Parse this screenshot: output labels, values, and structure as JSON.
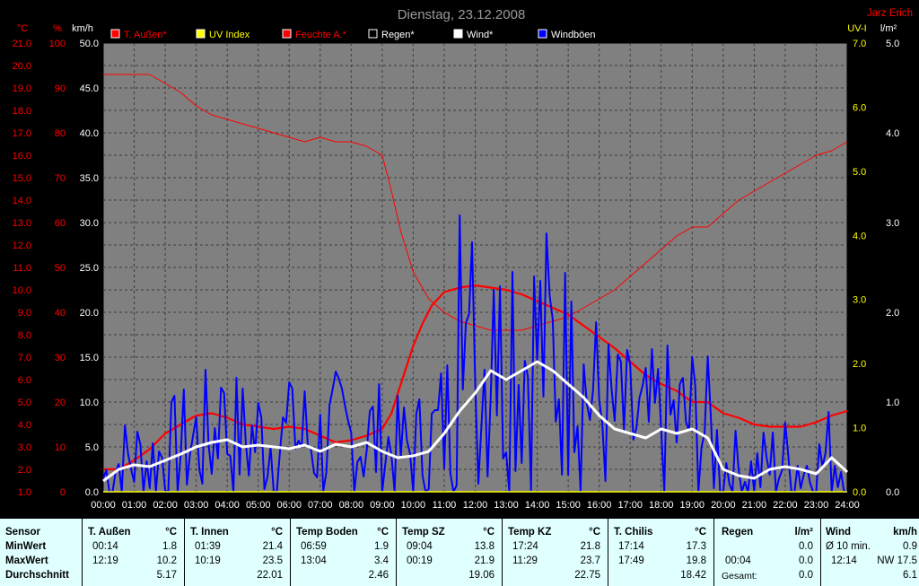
{
  "header": {
    "title": "Dienstag, 23.12.2008",
    "author": "Jarz Erich"
  },
  "colors": {
    "background": "#000000",
    "plot_bg": "#808080",
    "temp": "#ff0000",
    "uv": "#ffff00",
    "humidity": "#ff0000",
    "rain": "#000000",
    "wind": "#ffffff",
    "gust": "#0000ff",
    "stats_bg": "#e0ffff"
  },
  "chart_data": {
    "type": "line",
    "x_unit": "time of day",
    "x_ticks": [
      "00:00",
      "01:00",
      "02:00",
      "03:00",
      "04:00",
      "05:00",
      "06:00",
      "07:00",
      "08:00",
      "09:00",
      "10:00",
      "11:00",
      "12:00",
      "13:00",
      "14:00",
      "15:00",
      "16:00",
      "17:00",
      "18:00",
      "19:00",
      "20:00",
      "21:00",
      "22:00",
      "23:00",
      "24:00"
    ],
    "axes": {
      "temp": {
        "unit_label": "°C",
        "ticks": [
          "1.0",
          "2.0",
          "3.0",
          "4.0",
          "5.0",
          "6.0",
          "7.0",
          "8.0",
          "9.0",
          "10.0",
          "11.0",
          "12.0",
          "13.0",
          "14.0",
          "15.0",
          "16.0",
          "17.0",
          "18.0",
          "19.0",
          "20.0",
          "21.0"
        ],
        "min": 1,
        "max": 21
      },
      "humidity": {
        "unit_label": "%",
        "ticks": [
          "0",
          "10",
          "20",
          "30",
          "40",
          "50",
          "60",
          "70",
          "80",
          "90",
          "100"
        ],
        "min": 0,
        "max": 100
      },
      "wind": {
        "unit_label": "km/h",
        "ticks": [
          "0.0",
          "5.0",
          "10.0",
          "15.0",
          "20.0",
          "25.0",
          "30.0",
          "35.0",
          "40.0",
          "45.0",
          "50.0"
        ],
        "min": 0,
        "max": 50
      },
      "uv": {
        "unit_label": "UV-I",
        "ticks": [
          "0.0",
          "1.0",
          "2.0",
          "3.0",
          "4.0",
          "5.0",
          "6.0",
          "7.0"
        ],
        "min": 0,
        "max": 7
      },
      "rain": {
        "unit_label": "l/m²",
        "ticks": [
          "0.0",
          "1.0",
          "2.0",
          "3.0",
          "4.0",
          "5.0"
        ],
        "min": 0,
        "max": 5
      }
    },
    "legend": [
      {
        "name": "T. Außen*",
        "color": "#ff0000",
        "text_color": "#ff0000"
      },
      {
        "name": "UV Index",
        "color": "#ffff00",
        "text_color": "#ffff00"
      },
      {
        "name": "Feuchte A.*",
        "color": "#ff0000",
        "text_color": "#ff0000"
      },
      {
        "name": "Regen*",
        "color": "#000000",
        "text_color": "#ffffff"
      },
      {
        "name": "Wind*",
        "color": "#ffffff",
        "text_color": "#ffffff"
      },
      {
        "name": "Windböen",
        "color": "#0000ff",
        "text_color": "#ffffff"
      }
    ],
    "grid": true,
    "series": [
      {
        "name": "T. Außen*",
        "axis": "temp",
        "color": "#ff0000",
        "width": 2.2,
        "x": [
          0,
          0.5,
          1,
          1.5,
          2,
          2.5,
          3,
          3.5,
          4,
          4.5,
          5,
          5.5,
          6,
          6.5,
          7,
          7.5,
          8,
          8.5,
          9,
          9.3,
          9.6,
          10,
          10.3,
          10.6,
          11,
          11.5,
          12,
          12.5,
          13,
          13.5,
          14,
          14.5,
          15,
          15.5,
          16,
          16.5,
          17,
          17.5,
          18,
          18.5,
          19,
          19.5,
          20,
          20.5,
          21,
          21.5,
          22,
          22.5,
          23,
          23.5,
          24
        ],
        "y": [
          2.0,
          2.0,
          2.4,
          2.9,
          3.6,
          4.0,
          4.4,
          4.5,
          4.3,
          4.0,
          3.9,
          3.8,
          3.9,
          3.8,
          3.5,
          3.2,
          3.3,
          3.5,
          3.8,
          4.5,
          5.8,
          7.5,
          8.5,
          9.3,
          9.9,
          10.1,
          10.2,
          10.1,
          10.0,
          9.8,
          9.5,
          9.2,
          8.9,
          8.4,
          7.9,
          7.4,
          6.8,
          6.2,
          5.8,
          5.5,
          5.0,
          5.0,
          4.5,
          4.3,
          4.0,
          3.9,
          3.9,
          3.9,
          4.1,
          4.4,
          4.6
        ]
      },
      {
        "name": "Feuchte A.*",
        "axis": "humidity",
        "color": "#ff0000",
        "width": 1,
        "x": [
          0,
          0.5,
          1,
          1.5,
          2,
          2.5,
          3,
          3.5,
          4,
          4.5,
          5,
          5.5,
          6,
          6.5,
          7,
          7.5,
          8,
          8.5,
          9,
          9.3,
          9.6,
          10,
          10.5,
          11,
          11.5,
          12,
          12.5,
          13,
          13.5,
          14,
          14.5,
          15,
          15.5,
          16,
          16.5,
          17,
          17.5,
          18,
          18.5,
          19,
          19.5,
          20,
          20.5,
          21,
          21.5,
          22,
          22.5,
          23,
          23.5,
          24
        ],
        "y": [
          93,
          93,
          93,
          93,
          91,
          89,
          86,
          84,
          83,
          82,
          81,
          80,
          79,
          78,
          79,
          78,
          78,
          77,
          75,
          67,
          58,
          49,
          43,
          40,
          38,
          37,
          36,
          36,
          36,
          37,
          38,
          39,
          41,
          43,
          45,
          48,
          51,
          54,
          57,
          59,
          59,
          62,
          65,
          67,
          69,
          71,
          73,
          75,
          76,
          78
        ]
      },
      {
        "name": "Windböen",
        "axis": "wind",
        "color": "#0000ff",
        "width": 2,
        "generated": "gust"
      },
      {
        "name": "Wind*",
        "axis": "wind",
        "color": "#ffffff",
        "width": 3,
        "x": [
          0,
          0.5,
          1,
          1.5,
          2,
          2.5,
          3,
          3.5,
          4,
          4.5,
          5,
          5.5,
          6,
          6.5,
          7,
          7.5,
          8,
          8.5,
          9,
          9.5,
          10,
          10.5,
          11,
          11.5,
          12,
          12.5,
          13,
          13.5,
          14,
          14.5,
          15,
          15.5,
          16,
          16.5,
          17,
          17.5,
          18,
          18.5,
          19,
          19.5,
          20,
          20.5,
          21,
          21.5,
          22,
          22.5,
          23,
          23.5,
          24
        ],
        "y": [
          1.2,
          2.5,
          3.0,
          2.8,
          3.5,
          4.2,
          5.0,
          5.5,
          5.8,
          5.0,
          5.2,
          5.0,
          4.8,
          5.2,
          4.5,
          5.3,
          5.0,
          5.5,
          4.5,
          3.8,
          4.0,
          4.5,
          6.5,
          9.0,
          11.0,
          13.5,
          12.5,
          13.5,
          14.5,
          13.5,
          12.0,
          10.5,
          8.5,
          7.0,
          6.5,
          6.0,
          7.0,
          6.5,
          7.0,
          6.0,
          2.5,
          1.8,
          1.5,
          2.5,
          2.8,
          2.5,
          2.0,
          3.8,
          2.2
        ]
      },
      {
        "name": "UV Index",
        "axis": "uv",
        "color": "#ffff00",
        "width": 1.5,
        "x": [
          0,
          24
        ],
        "y": [
          0,
          0
        ]
      }
    ]
  },
  "stats": {
    "row_labels": [
      "Sensor",
      "MinWert",
      "MaxWert",
      "Durchschnitt"
    ],
    "columns": [
      {
        "title": "T. Außen",
        "unit": "°C",
        "min_time": "00:14",
        "min_val": "1.8",
        "max_time": "12:19",
        "max_val": "10.2",
        "avg": "5.17"
      },
      {
        "title": "T. Innen",
        "unit": "°C",
        "min_time": "01:39",
        "min_val": "21.4",
        "max_time": "10:19",
        "max_val": "23.5",
        "avg": "22.01"
      },
      {
        "title": "Temp Boden",
        "unit": "°C",
        "min_time": "06:59",
        "min_val": "1.9",
        "max_time": "13:04",
        "max_val": "3.4",
        "avg": "2.46"
      },
      {
        "title": "Temp SZ",
        "unit": "°C",
        "min_time": "09:04",
        "min_val": "13.8",
        "max_time": "00:19",
        "max_val": "21.9",
        "avg": "19.06"
      },
      {
        "title": "Temp KZ",
        "unit": "°C",
        "min_time": "17:24",
        "min_val": "21.8",
        "max_time": "11:29",
        "max_val": "23.7",
        "avg": "22.75"
      },
      {
        "title": "T. Chilis",
        "unit": "°C",
        "min_time": "17:14",
        "min_val": "17.3",
        "max_time": "17:49",
        "max_val": "19.8",
        "avg": "18.42"
      }
    ],
    "regen": {
      "title": "Regen",
      "unit": "l/m²",
      "row1_label": "",
      "row1_val": "0.0",
      "row2_time": "00:04",
      "row2_val": "0.0",
      "row3_label": "Gesamt:",
      "row3_val": "0.0"
    },
    "wind": {
      "title": "Wind",
      "unit": "km/h",
      "row1_label": "Ø 10 min.",
      "row1_val": "0.9",
      "row2_time": "12:14",
      "row2_val": "NW 17.5",
      "row3_val": "6.1"
    }
  }
}
